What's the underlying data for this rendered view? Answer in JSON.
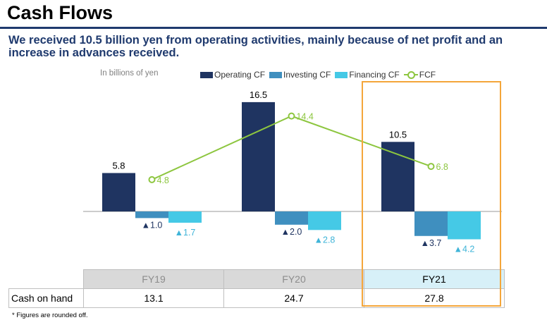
{
  "header": {
    "title": "Cash Flows",
    "subtitle": "We received 10.5 billion yen from operating activities, mainly because of net profit and an increase in advances received."
  },
  "unit_label": "In billions of yen",
  "legend": {
    "operating": "Operating CF",
    "investing": "Investing CF",
    "financing": "Financing CF",
    "fcf": "FCF"
  },
  "colors": {
    "operating": "#1f3461",
    "investing": "#3f8fbf",
    "financing": "#45c9e6",
    "fcf": "#8dc63f",
    "highlight": "#f4a63a"
  },
  "chart_data": {
    "type": "bar",
    "categories": [
      "FY19",
      "FY20",
      "FY21"
    ],
    "series": [
      {
        "name": "Operating CF",
        "values": [
          5.8,
          16.5,
          10.5
        ],
        "labels": [
          "5.8",
          "16.5",
          "10.5"
        ]
      },
      {
        "name": "Investing CF",
        "values": [
          -1.0,
          -2.0,
          -3.7
        ],
        "labels": [
          "▲1.0",
          "▲2.0",
          "▲3.7"
        ]
      },
      {
        "name": "Financing CF",
        "values": [
          -1.7,
          -2.8,
          -4.2
        ],
        "labels": [
          "▲1.7",
          "▲2.8",
          "▲4.2"
        ]
      },
      {
        "name": "FCF",
        "type": "line",
        "values": [
          4.8,
          14.4,
          6.8
        ],
        "labels": [
          "4.8",
          "14.4",
          "6.8"
        ]
      }
    ],
    "highlighted_category": "FY21"
  },
  "table": {
    "headers": [
      "FY19",
      "FY20",
      "FY21"
    ],
    "row_label": "Cash on hand",
    "values": [
      "13.1",
      "24.7",
      "27.8"
    ]
  },
  "footnote": "* Figures are rounded off."
}
